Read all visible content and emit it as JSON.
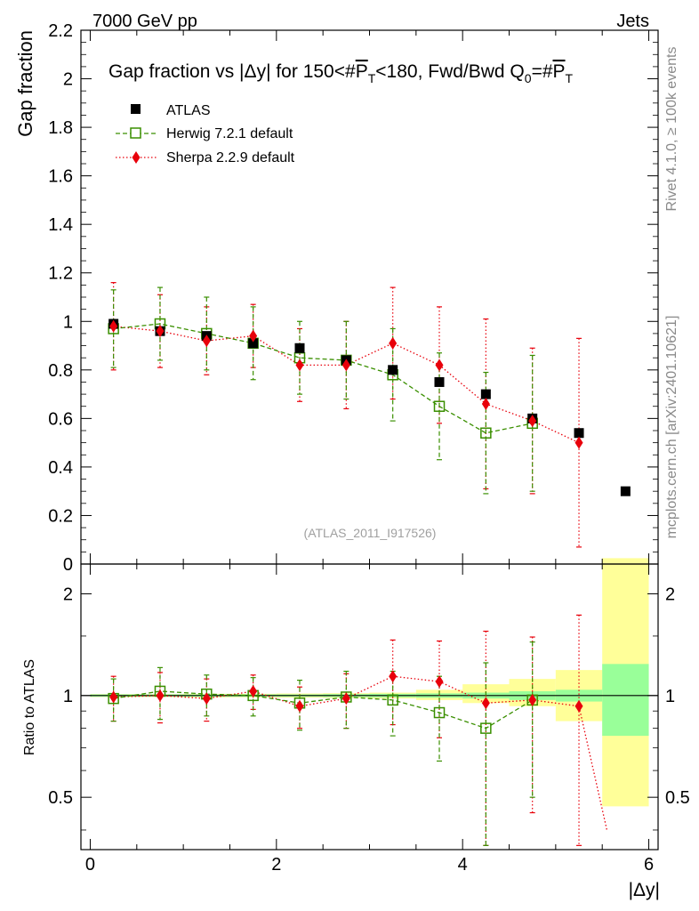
{
  "header": {
    "left": "7000 GeV pp",
    "right": "Jets"
  },
  "side_labels": {
    "rivet": "Rivet 4.1.0, ≥ 100k events",
    "mcplots": "mcplots.cern.ch [arXiv:2401.10621]"
  },
  "chart_data": {
    "type": "scatter",
    "title": "Gap fraction vs |Δy| for 150<#P̅T<180, Fwd/Bwd Q0=#P̅T",
    "title_parts": {
      "t1": "Gap fraction vs |",
      "t2": "Δ",
      "t3": "y| for 150<#",
      "t4": "P",
      "t5": "T",
      "t6": "<180, Fwd/Bwd Q",
      "t7": "0",
      "t8": "=#",
      "t9": "P",
      "t10": "T"
    },
    "analysis_tag": "(ATLAS_2011_I917526)",
    "ylabel": "Gap fraction",
    "ratio_ylabel": "Ratio to ATLAS",
    "xlabel": "|Δy|",
    "xlim": [
      -0.1,
      6.1
    ],
    "ylim": [
      0,
      2.2
    ],
    "ratio_ylim": [
      0.35,
      2.45
    ],
    "x_ticks": [
      0,
      2,
      4,
      6
    ],
    "x_tick_labels": [
      "0",
      "2",
      "4",
      "6"
    ],
    "y_ticks": [
      0,
      0.2,
      0.4,
      0.6,
      0.8,
      1,
      1.2,
      1.4,
      1.6,
      1.8,
      2,
      2.2
    ],
    "y_tick_labels": [
      "0",
      "0.2",
      "0.4",
      "0.6",
      "0.8",
      "1",
      "1.2",
      "1.4",
      "1.6",
      "1.8",
      "2",
      "2.2"
    ],
    "ratio_ticks": [
      0.5,
      1,
      2
    ],
    "ratio_tick_labels": [
      "0.5",
      "1",
      "2"
    ],
    "legend_position": "top-left",
    "series": [
      {
        "name": "ATLAS",
        "color": "#000000",
        "x": [
          0.25,
          0.75,
          1.25,
          1.75,
          2.25,
          2.75,
          3.25,
          3.75,
          4.25,
          4.75,
          5.25,
          5.75
        ],
        "y": [
          0.99,
          0.96,
          0.94,
          0.91,
          0.89,
          0.84,
          0.8,
          0.75,
          0.7,
          0.6,
          0.54,
          0.3
        ]
      },
      {
        "name": "Herwig 7.2.1 default",
        "color": "#3a8f00",
        "x": [
          0.25,
          0.75,
          1.25,
          1.75,
          2.25,
          2.75,
          3.25,
          3.75,
          4.25,
          4.75
        ],
        "y": [
          0.97,
          0.99,
          0.95,
          0.91,
          0.85,
          0.84,
          0.78,
          0.65,
          0.54,
          0.58
        ],
        "yerr": [
          0.16,
          0.15,
          0.15,
          0.15,
          0.15,
          0.16,
          0.19,
          0.22,
          0.25,
          0.28
        ],
        "ratio": [
          0.98,
          1.03,
          1.01,
          1.0,
          0.95,
          0.99,
          0.97,
          0.89,
          0.8,
          0.97
        ],
        "ratio_err": [
          0.14,
          0.18,
          0.14,
          0.13,
          0.16,
          0.19,
          0.21,
          0.25,
          0.45,
          0.47
        ]
      },
      {
        "name": "Sherpa 2.2.9 default",
        "color": "#e8000b",
        "x": [
          0.25,
          0.75,
          1.25,
          1.75,
          2.25,
          2.75,
          3.25,
          3.75,
          4.25,
          4.75,
          5.25
        ],
        "y": [
          0.98,
          0.96,
          0.92,
          0.94,
          0.82,
          0.82,
          0.91,
          0.82,
          0.66,
          0.59,
          0.5
        ],
        "yerr": [
          0.18,
          0.15,
          0.14,
          0.13,
          0.15,
          0.18,
          0.23,
          0.24,
          0.35,
          0.3,
          0.43
        ],
        "ratio": [
          0.99,
          1.0,
          0.98,
          1.03,
          0.93,
          0.98,
          1.14,
          1.1,
          0.95,
          0.97,
          0.93
        ],
        "ratio_err": [
          0.15,
          0.17,
          0.14,
          0.12,
          0.13,
          0.18,
          0.32,
          0.35,
          0.6,
          0.52,
          0.8
        ]
      }
    ],
    "ratio_tail": {
      "x": [
        5.25,
        5.55
      ],
      "ratio": [
        0.93,
        0.4
      ]
    },
    "uncertainty_bands": {
      "x_edges": [
        0.0,
        0.5,
        1.0,
        1.5,
        2.0,
        2.5,
        3.0,
        3.5,
        4.0,
        4.5,
        5.0,
        5.5,
        6.0
      ],
      "inner": [
        0.008,
        0.008,
        0.008,
        0.008,
        0.008,
        0.01,
        0.012,
        0.015,
        0.02,
        0.03,
        0.04,
        0.24
      ],
      "outer_low": [
        0.01,
        0.01,
        0.012,
        0.012,
        0.014,
        0.016,
        0.02,
        0.03,
        0.05,
        0.07,
        0.16,
        0.53
      ],
      "outer_high": [
        0.01,
        0.01,
        0.012,
        0.012,
        0.014,
        0.016,
        0.02,
        0.04,
        0.08,
        0.12,
        0.19,
        1.55
      ]
    }
  }
}
